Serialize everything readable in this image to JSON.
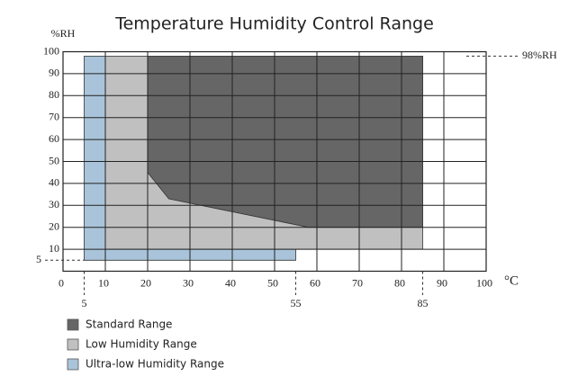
{
  "chart_data": {
    "type": "area",
    "title": "Temperature Humidity Control Range",
    "y_label": "%RH",
    "x_label": "°C",
    "xlim": [
      0,
      100
    ],
    "ylim": [
      0,
      100
    ],
    "xticks": [
      0,
      10,
      20,
      30,
      40,
      50,
      60,
      70,
      80,
      90,
      100
    ],
    "yticks": [
      10,
      20,
      30,
      40,
      50,
      60,
      70,
      80,
      90,
      100
    ],
    "grid": true,
    "legend": "bottom-left",
    "xrefs": [
      5,
      55,
      85
    ],
    "yrefs": [
      5,
      {
        "value": 98,
        "label": "98%RH"
      }
    ],
    "series": [
      {
        "name": "Standard Range",
        "color": "#666666",
        "x": [
          20,
          25,
          58,
          85,
          85,
          20
        ],
        "values": [
          45,
          33,
          20,
          20,
          98,
          98
        ]
      },
      {
        "name": "Low Humidity Range",
        "color": "#c0c0c0",
        "x": [
          10,
          85,
          85,
          10
        ],
        "values": [
          10,
          10,
          98,
          98
        ]
      },
      {
        "name": "Ultra-low Humidity Range",
        "color": "#a9c4da",
        "x": [
          5,
          55,
          55,
          10,
          10,
          5
        ],
        "values": [
          5,
          5,
          10,
          10,
          98,
          98
        ]
      }
    ]
  }
}
